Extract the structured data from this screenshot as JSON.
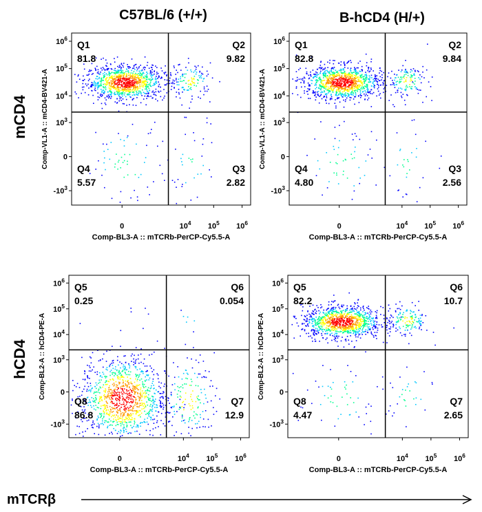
{
  "figure": {
    "column_titles": [
      "C57BL/6 (+/+)",
      "B-hCD4 (H/+)"
    ],
    "row_titles": [
      "mCD4",
      "hCD4"
    ],
    "bottom_axis_label": "mTCRβ"
  },
  "colors": {
    "quadrant_line": "#000000",
    "density_low": "#0000ff",
    "density_mid": "#00c8ff",
    "density_high": "#ffff00",
    "density_peak": "#ff0000"
  },
  "chart_data": [
    {
      "type": "scatter",
      "strain": "C57BL/6 (+/+)",
      "marker": "mCD4",
      "xlabel": "Comp-BL3-A :: mTCRb-PerCP-Cy5.5-A",
      "ylabel": "Comp-VL1-A :: mCD4-BV421-A",
      "x_scale": "biexponential",
      "y_scale": "biexponential",
      "x_ticks": [
        "0",
        "10^4",
        "10^5",
        "10^6"
      ],
      "y_ticks": [
        "10^6",
        "10^5",
        "10^4",
        "10^3",
        "0",
        "-10^3"
      ],
      "x_gate": 2500,
      "y_gate": 2500,
      "quadrants": [
        {
          "name": "Q1",
          "percent": "81.8"
        },
        {
          "name": "Q2",
          "percent": "9.82"
        },
        {
          "name": "Q3",
          "percent": "2.82"
        },
        {
          "name": "Q4",
          "percent": "5.57"
        }
      ]
    },
    {
      "type": "scatter",
      "strain": "B-hCD4 (H/+)",
      "marker": "mCD4",
      "xlabel": "Comp-BL3-A :: mTCRb-PerCP-Cy5.5-A",
      "ylabel": "Comp-VL1-A :: mCD4-BV421-A",
      "x_scale": "biexponential",
      "y_scale": "biexponential",
      "x_ticks": [
        "0",
        "10^4",
        "10^5",
        "10^6"
      ],
      "y_ticks": [
        "10^6",
        "10^5",
        "10^4",
        "10^3",
        "0",
        "-10^3"
      ],
      "x_gate": 2500,
      "y_gate": 2500,
      "quadrants": [
        {
          "name": "Q1",
          "percent": "82.8"
        },
        {
          "name": "Q2",
          "percent": "9.84"
        },
        {
          "name": "Q3",
          "percent": "2.56"
        },
        {
          "name": "Q4",
          "percent": "4.80"
        }
      ]
    },
    {
      "type": "scatter",
      "strain": "C57BL/6 (+/+)",
      "marker": "hCD4",
      "xlabel": "Comp-BL3-A :: mTCRb-PerCP-Cy5.5-A",
      "ylabel": "Comp-BL2-A :: hCD4-PE-A",
      "x_scale": "biexponential",
      "y_scale": "biexponential",
      "x_ticks": [
        "0",
        "10^4",
        "10^5",
        "10^6"
      ],
      "y_ticks": [
        "10^6",
        "10^5",
        "10^4",
        "10^3",
        "0",
        "-10^3"
      ],
      "x_gate": 2500,
      "y_gate": 2500,
      "quadrants": [
        {
          "name": "Q5",
          "percent": "0.25"
        },
        {
          "name": "Q6",
          "percent": "0.054"
        },
        {
          "name": "Q7",
          "percent": "12.9"
        },
        {
          "name": "Q8",
          "percent": "86.8"
        }
      ]
    },
    {
      "type": "scatter",
      "strain": "B-hCD4 (H/+)",
      "marker": "hCD4",
      "xlabel": "Comp-BL3-A :: mTCRb-PerCP-Cy5.5-A",
      "ylabel": "Comp-BL2-A :: hCD4-PE-A",
      "x_scale": "biexponential",
      "y_scale": "biexponential",
      "x_ticks": [
        "0",
        "10^4",
        "10^5",
        "10^6"
      ],
      "y_ticks": [
        "10^6",
        "10^5",
        "10^4",
        "10^3",
        "0",
        "-10^3"
      ],
      "x_gate": 2500,
      "y_gate": 2500,
      "quadrants": [
        {
          "name": "Q5",
          "percent": "82.2"
        },
        {
          "name": "Q6",
          "percent": "10.7"
        },
        {
          "name": "Q7",
          "percent": "2.65"
        },
        {
          "name": "Q8",
          "percent": "4.47"
        }
      ]
    }
  ]
}
